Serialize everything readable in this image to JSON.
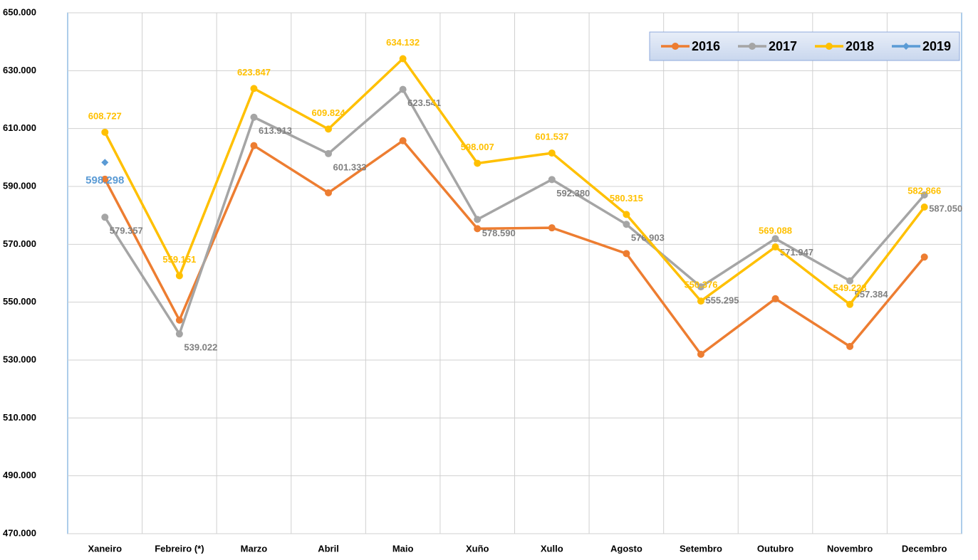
{
  "chart_data": {
    "type": "line",
    "categories": [
      "Xaneiro",
      "Febreiro (*)",
      "Marzo",
      "Abril",
      "Maio",
      "Xuño",
      "Xullo",
      "Agosto",
      "Setembro",
      "Outubro",
      "Novembro",
      "Decembro"
    ],
    "series": [
      {
        "name": "2016",
        "color": "#ed7d31",
        "values": [
          592500,
          543800,
          604100,
          587800,
          605800,
          575400,
          575700,
          566800,
          532000,
          551200,
          534700,
          565600
        ]
      },
      {
        "name": "2017",
        "color": "#a5a5a5",
        "values": [
          579357,
          539022,
          613913,
          601333,
          623541,
          578590,
          592380,
          576903,
          555295,
          571947,
          557384,
          587050
        ],
        "value_labels": [
          "579.357",
          "539.022",
          "613.913",
          "601.333",
          "623.541",
          "578.590",
          "592.380",
          "576.903",
          "555.295",
          "571.947",
          "557.384",
          "587.050"
        ]
      },
      {
        "name": "2018",
        "color": "#ffc000",
        "values": [
          608727,
          559151,
          623847,
          609824,
          634132,
          598007,
          601537,
          580315,
          550376,
          569088,
          549228,
          582866
        ],
        "value_labels": [
          "608.727",
          "559.151",
          "623.847",
          "609.824",
          "634.132",
          "598.007",
          "601.537",
          "580.315",
          "550.376",
          "569.088",
          "549.228",
          "582.866"
        ]
      },
      {
        "name": "2019",
        "color": "#5b9bd5",
        "values": [
          598298,
          null,
          null,
          null,
          null,
          null,
          null,
          null,
          null,
          null,
          null,
          null
        ],
        "value_labels": [
          "598.298",
          null,
          null,
          null,
          null,
          null,
          null,
          null,
          null,
          null,
          null,
          null
        ]
      }
    ],
    "ylim": [
      470000,
      650000
    ],
    "yticks": [
      {
        "value": 470000,
        "label": "470.000"
      },
      {
        "value": 490000,
        "label": "490.000"
      },
      {
        "value": 510000,
        "label": "510.000"
      },
      {
        "value": 530000,
        "label": "530.000"
      },
      {
        "value": 550000,
        "label": "550.000"
      },
      {
        "value": 570000,
        "label": "570.000"
      },
      {
        "value": 590000,
        "label": "590.000"
      },
      {
        "value": 610000,
        "label": "610.000"
      },
      {
        "value": 630000,
        "label": "630.000"
      },
      {
        "value": 650000,
        "label": "650.000"
      }
    ],
    "grid": true,
    "legend": "upper right"
  }
}
